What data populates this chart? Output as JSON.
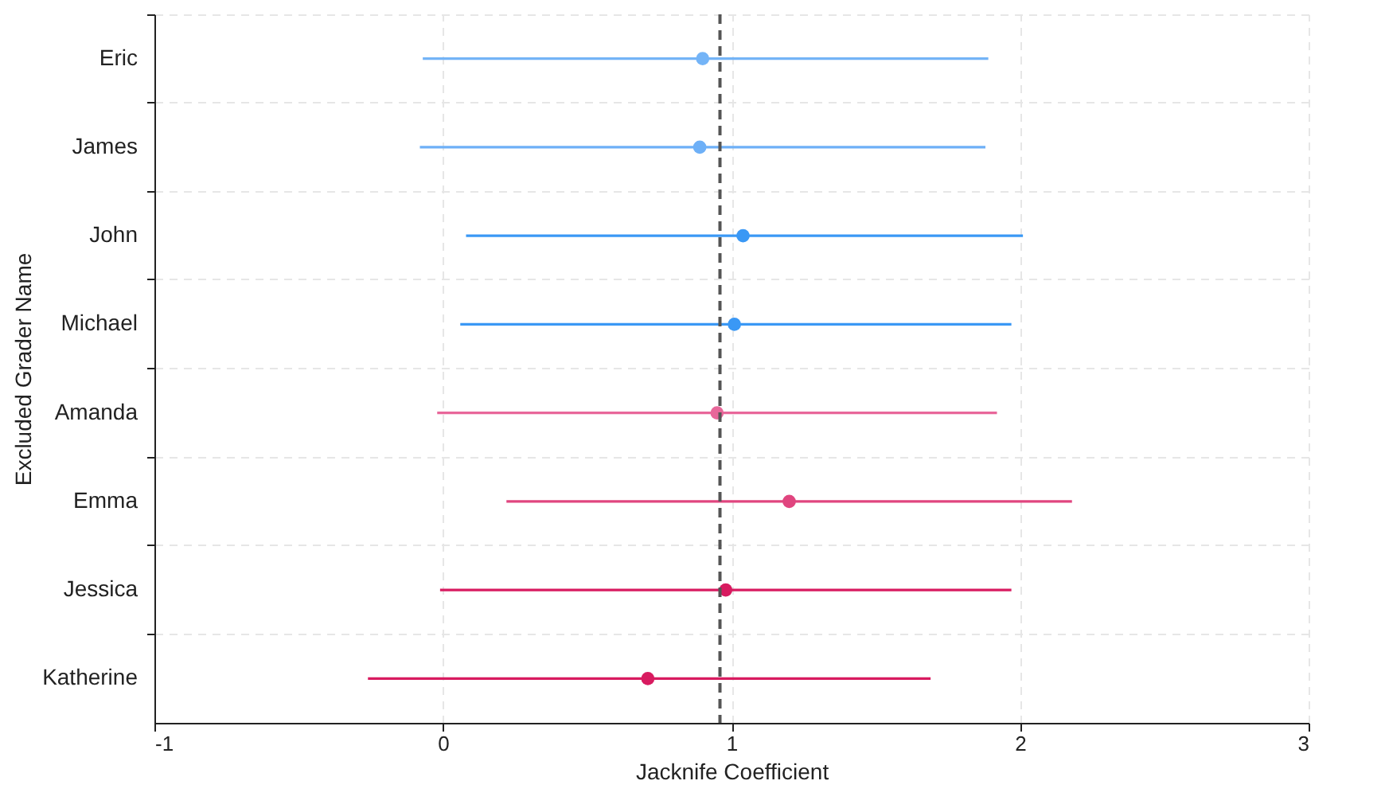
{
  "chart_data": {
    "type": "scatter",
    "orientation": "horizontal",
    "xlabel": "Jacknife Coefficient",
    "ylabel": "Excluded Grader Name",
    "categories": [
      "Eric",
      "James",
      "John",
      "Michael",
      "Amanda",
      "Emma",
      "Jessica",
      "Katherine"
    ],
    "values": [
      0.9,
      0.89,
      1.04,
      1.01,
      0.95,
      1.2,
      0.98,
      0.71
    ],
    "errors": [
      [
        -0.07,
        1.89
      ],
      [
        -0.08,
        1.88
      ],
      [
        0.08,
        2.01
      ],
      [
        0.06,
        1.97
      ],
      [
        -0.02,
        1.92
      ],
      [
        0.22,
        2.18
      ],
      [
        -0.01,
        1.97
      ],
      [
        -0.26,
        1.69
      ]
    ],
    "colors": [
      "#74b4f7",
      "#6eb0f7",
      "#3a98f5",
      "#3a98f5",
      "#e8679a",
      "#e0457f",
      "#d81b60",
      "#d81b60"
    ],
    "xlim": [
      -1,
      3
    ],
    "xticks": [
      -1,
      0,
      1,
      2,
      3
    ],
    "grid": true,
    "marker": "circle",
    "ref_lines": [
      {
        "axis": "x",
        "value": 0.96,
        "color": "#555555",
        "line_style": "dashed"
      }
    ]
  }
}
